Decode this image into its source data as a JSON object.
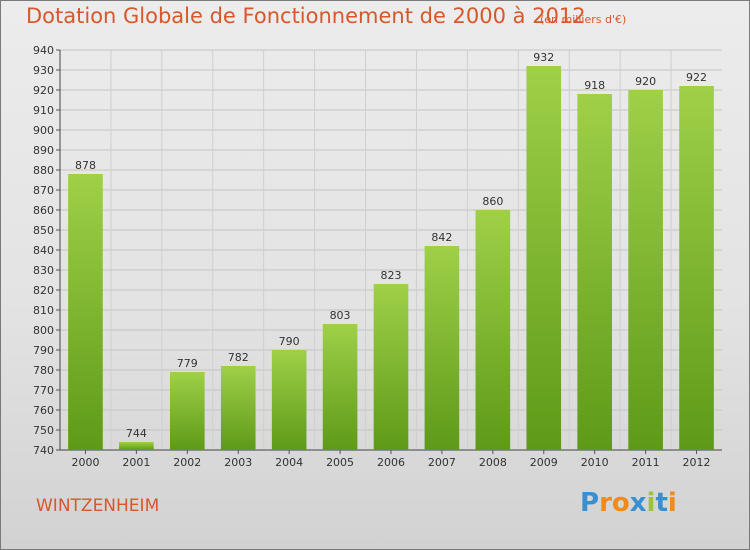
{
  "title": "Dotation Globale de Fonctionnement de 2000 à 2012",
  "subtitle": "(en milliers d'€)",
  "commune": "WINTZENHEIM",
  "logo": "Proxiti",
  "colors": {
    "title": "#d8572b",
    "bar_light": "#9fd048",
    "bar_dark": "#5e9a18"
  },
  "chart_data": {
    "type": "bar",
    "title": "Dotation Globale de Fonctionnement de 2000 à 2012",
    "subtitle": "(en milliers d'€)",
    "xlabel": "",
    "ylabel": "",
    "categories": [
      "2000",
      "2001",
      "2002",
      "2003",
      "2004",
      "2005",
      "2006",
      "2007",
      "2008",
      "2009",
      "2010",
      "2011",
      "2012"
    ],
    "values": [
      878,
      744,
      779,
      782,
      790,
      803,
      823,
      842,
      860,
      932,
      918,
      920,
      922
    ],
    "ylim": [
      740,
      940
    ],
    "yticks": [
      740,
      750,
      760,
      770,
      780,
      790,
      800,
      810,
      820,
      830,
      840,
      850,
      860,
      870,
      880,
      890,
      900,
      910,
      920,
      930,
      940
    ],
    "grid": true
  }
}
